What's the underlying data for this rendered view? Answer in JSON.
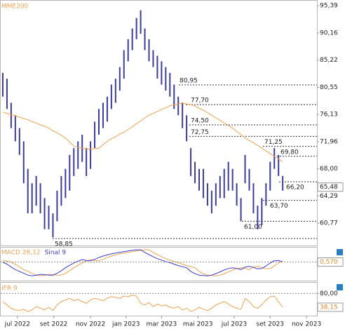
{
  "chart_data": [
    {
      "type": "ohlc",
      "bar_color": "#3b3b9e",
      "log": true,
      "ylim": [
        58.0,
        96.4
      ],
      "yticks": [
        {
          "value": 60.77,
          "label": "60,77"
        },
        {
          "value": 64.29,
          "label": "64,29"
        },
        {
          "value": 68.0,
          "label": "68,00"
        },
        {
          "value": 71.96,
          "label": "71,96"
        },
        {
          "value": 76.13,
          "label": "76,13"
        },
        {
          "value": 80.55,
          "label": "80,55"
        },
        {
          "value": 85.22,
          "label": "85,22"
        },
        {
          "value": 90.16,
          "label": "90,16"
        },
        {
          "value": 95.39,
          "label": "95,39"
        }
      ],
      "high": [
        83,
        82,
        78,
        76,
        74,
        72,
        68,
        66,
        67,
        66,
        64,
        63,
        62,
        65,
        67,
        68,
        70,
        71,
        72,
        73,
        71,
        72,
        75,
        77,
        78,
        79,
        81,
        82,
        84,
        87,
        89,
        91,
        93,
        94.5,
        91,
        89,
        87,
        86,
        85,
        84,
        83,
        81,
        79,
        78,
        76,
        71,
        69,
        68,
        68,
        66,
        65,
        66,
        67,
        68,
        69,
        68,
        66,
        64,
        70,
        68,
        66,
        63,
        64,
        66,
        69,
        71,
        70,
        67
      ],
      "low": [
        79,
        77,
        74,
        72,
        70,
        66,
        62,
        62,
        63,
        62,
        60,
        60,
        59,
        61,
        63,
        64,
        65,
        67,
        68,
        69,
        67,
        68,
        71,
        73,
        74,
        75,
        77,
        78,
        80,
        82,
        85,
        87,
        89,
        90,
        87,
        85,
        84,
        82,
        81,
        80,
        79,
        77,
        76,
        74,
        72,
        67,
        66,
        65,
        64,
        63,
        62,
        63,
        64,
        64,
        65,
        65,
        63,
        61,
        66,
        65,
        62,
        60,
        60.5,
        63,
        65,
        68,
        67,
        65
      ],
      "series": [
        {
          "name": "MME200",
          "color": "#f2a052",
          "values": [
            76.5,
            76.3,
            76.1,
            75.9,
            75.7,
            75.5,
            75.3,
            75.0,
            74.8,
            74.5,
            74.3,
            74.0,
            73.6,
            73.3,
            72.9,
            72.5,
            71.9,
            71.3,
            71.1,
            71.0,
            70.8,
            70.9,
            70.9,
            71.0,
            71.5,
            72.0,
            72.4,
            72.7,
            73.1,
            73.4,
            73.8,
            74.2,
            74.7,
            75.1,
            75.6,
            76.0,
            76.3,
            76.6,
            76.9,
            77.2,
            77.5,
            77.7,
            77.8,
            78.0,
            77.8,
            77.7,
            77.5,
            77.1,
            76.8,
            76.4,
            76.0,
            75.6,
            75.2,
            74.8,
            74.4,
            74.0,
            73.5,
            73.0,
            72.5,
            72.1,
            71.8,
            71.4,
            71.0,
            70.6,
            70.2,
            69.8,
            69.4,
            69.0
          ]
        }
      ],
      "annotations": [
        {
          "value": 80.95,
          "label": "80,95"
        },
        {
          "value": 77.7,
          "label": "77,70"
        },
        {
          "value": 74.5,
          "label": "74,50"
        },
        {
          "value": 72.75,
          "label": "72,75"
        },
        {
          "value": 71.25,
          "label": "71,25"
        },
        {
          "value": 69.8,
          "label": "69,80"
        },
        {
          "value": 66.2,
          "label": "66,20"
        },
        {
          "value": 63.7,
          "label": "63,70"
        },
        {
          "value": 61.0,
          "label": "61,00"
        },
        {
          "value": 58.85,
          "label": "58,85"
        }
      ],
      "last": {
        "value": 65.48,
        "label": "65,48"
      }
    },
    {
      "type": "line",
      "ylim": [
        -4.5,
        4.5
      ],
      "series": [
        {
          "name": "MACD 26,12",
          "color": "#f2a052",
          "values": [
            1,
            0.8,
            0.5,
            0,
            -0.8,
            -1.5,
            -2,
            -2.5,
            -3,
            -3.2,
            -3,
            -2.8,
            -2.9,
            -3,
            -3,
            -2.5,
            -1.8,
            -1,
            -0.3,
            0.3,
            0.8,
            1.2,
            1,
            0.9,
            1.3,
            1.8,
            2.2,
            2.5,
            2.8,
            3,
            3.2,
            3.4,
            3.6,
            3.8,
            3.9,
            3.9,
            3.2,
            2.6,
            2,
            1.5,
            1.1,
            0.7,
            0.4,
            0,
            -0.4,
            -0.7,
            -1,
            -2,
            -2.6,
            -3,
            -3.1,
            -3.2,
            -3,
            -2.6,
            -2.1,
            -1.6,
            -1.2,
            -1,
            -1.2,
            -1.5,
            -0.8,
            -0.6,
            -0.9,
            -1.3,
            -1.2,
            -0.5,
            0.3,
            0.9
          ]
        },
        {
          "name": "Sinal 9",
          "color": "#3b3bd0",
          "values": [
            0.5,
            0,
            -0.8,
            -1.5,
            -2,
            -2.5,
            -3,
            -3.2,
            -3,
            -2.8,
            -2.9,
            -3,
            -3,
            -2.5,
            -1.8,
            -1,
            -0.3,
            0.3,
            0.8,
            1.2,
            1,
            0.9,
            1.3,
            1.8,
            2.2,
            2.5,
            2.8,
            3,
            3.2,
            3.4,
            3.6,
            3.8,
            3.9,
            3.9,
            3.2,
            2.6,
            2,
            1.5,
            1.1,
            0.7,
            0.4,
            0,
            -0.4,
            -0.7,
            -1,
            -2,
            -2.6,
            -3,
            -3.1,
            -3.2,
            -3,
            -2.6,
            -2.1,
            -1.6,
            -1.2,
            -1,
            -1.2,
            -1.5,
            -0.8,
            -0.6,
            -0.9,
            -1.3,
            -1.2,
            -0.5,
            0.3,
            0.9,
            1.0,
            0.57
          ]
        }
      ],
      "last": {
        "value": 0.57,
        "label": "0,570"
      }
    },
    {
      "type": "line",
      "ylim": [
        12.5,
        112.5
      ],
      "yticks": [
        {
          "value": 80,
          "label": "80,00"
        }
      ],
      "series": [
        {
          "name": "IFR 9",
          "color": "#f2a052",
          "values": [
            55,
            45,
            35,
            30,
            28,
            32,
            25,
            30,
            40,
            35,
            30,
            38,
            28,
            45,
            55,
            60,
            65,
            58,
            62,
            55,
            50,
            60,
            65,
            62,
            58,
            66,
            70,
            68,
            65,
            72,
            70,
            75,
            72,
            50,
            45,
            52,
            40,
            48,
            42,
            45,
            38,
            35,
            40,
            30,
            35,
            25,
            30,
            38,
            32,
            28,
            35,
            45,
            50,
            55,
            48,
            40,
            35,
            32,
            65,
            55,
            40,
            35,
            45,
            60,
            70,
            72,
            55,
            38.15
          ]
        }
      ],
      "last": {
        "value": 38.15,
        "label": "38,15"
      },
      "xlim": [
        -0.5,
        75.2
      ],
      "xticks": [
        {
          "value": 3.5,
          "label": "jul 2022"
        },
        {
          "value": 12.2,
          "label": "set 2022"
        },
        {
          "value": 21,
          "label": "nov 2022"
        },
        {
          "value": 29.5,
          "label": "jan 2023"
        },
        {
          "value": 38,
          "label": "mar 2023"
        },
        {
          "value": 46.7,
          "label": "mai 2023"
        },
        {
          "value": 55.4,
          "label": "jul 2023"
        },
        {
          "value": 64,
          "label": "set 2023"
        },
        {
          "value": 72.7,
          "label": "nov 2023"
        }
      ]
    }
  ]
}
